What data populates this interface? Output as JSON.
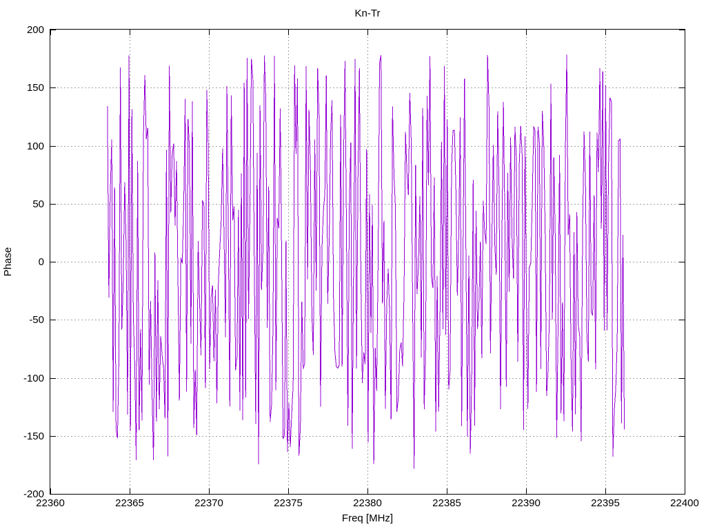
{
  "figure": {
    "title": "Kn-Tr",
    "xlabel": "Freq [MHz]",
    "ylabel": "Phase",
    "background_color": "#ffffff",
    "border_color": "#000000",
    "grid_color": "#a0a0a0",
    "tick_color": "#000000",
    "text_color": "#000000"
  },
  "chart_data": {
    "type": "line",
    "title": "Kn-Tr",
    "xlabel": "Freq [MHz]",
    "ylabel": "Phase",
    "xlim": [
      22360,
      22400
    ],
    "ylim": [
      -200,
      200
    ],
    "xticks": [
      22360,
      22365,
      22370,
      22375,
      22380,
      22385,
      22390,
      22395,
      22400
    ],
    "yticks": [
      200,
      150,
      100,
      50,
      0,
      -50,
      -100,
      -150,
      -200
    ],
    "grid": "dotted gray lines at every interior major tick, both axes",
    "legend": "none",
    "tick_style": "inward 8px, mirrored on top and right borders",
    "series": [
      {
        "name": "Phase",
        "color": "#9400D3",
        "line_width": 1,
        "x_start": 22363.6,
        "x_end": 22396.2,
        "n_points": 360,
        "y_min": -180,
        "y_max": 180,
        "appearance": "wrapped phase noise: consecutive samples jump pseudo-randomly across the full -180..+180 range, rendered as a connected line producing dense near-vertical purple strokes between x=22363.6 and x=22396.2; no data outside that band",
        "prng": "mulberry32",
        "seed": 20360
      }
    ]
  }
}
